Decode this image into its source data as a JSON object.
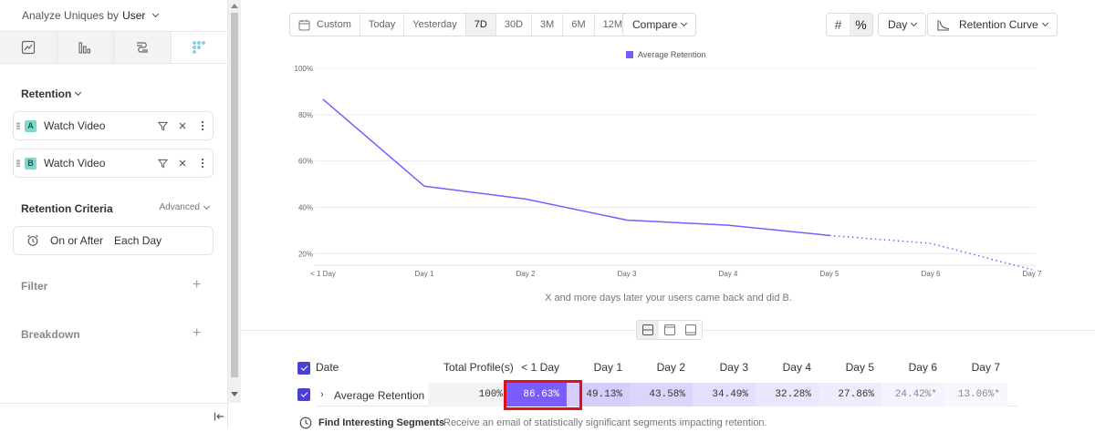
{
  "sidebar": {
    "analyze_prefix": "Analyze Uniques by",
    "analyze_value": "User",
    "retention_title": "Retention",
    "events": [
      {
        "badge": "A",
        "label": "Watch Video"
      },
      {
        "badge": "B",
        "label": "Watch Video"
      }
    ],
    "criteria_title": "Retention Criteria",
    "criteria_mode": "Advanced",
    "criteria_condition": "On or After",
    "criteria_interval": "Each Day",
    "filter_title": "Filter",
    "breakdown_title": "Breakdown"
  },
  "toolbar": {
    "date_options": [
      "Custom",
      "Today",
      "Yesterday",
      "7D",
      "30D",
      "3M",
      "6M",
      "12M"
    ],
    "active_date": "7D",
    "compare_label": "Compare",
    "display_hash": "#",
    "display_percent": "%",
    "granularity": "Day",
    "chart_type": "Retention Curve"
  },
  "chart_data": {
    "type": "line",
    "series": [
      {
        "name": "Average Retention",
        "color": "#7b5cff",
        "x": [
          "< 1 Day",
          "Day 1",
          "Day 2",
          "Day 3",
          "Day 4",
          "Day 5",
          "Day 6",
          "Day 7"
        ],
        "values": [
          86.63,
          49.13,
          43.58,
          34.49,
          32.28,
          27.86,
          24.42,
          13.06
        ],
        "incomplete_from_index": 5
      }
    ],
    "y_ticks": [
      "100%",
      "80%",
      "60%",
      "40%",
      "20%"
    ],
    "ylim": [
      15,
      100
    ],
    "grid": true,
    "legend_position": "top-center",
    "caption": "X and more days later your users came back and did B."
  },
  "table": {
    "headers": {
      "date": "Date",
      "total": "Total Profile(s)",
      "days": [
        "< 1 Day",
        "Day 1",
        "Day 2",
        "Day 3",
        "Day 4",
        "Day 5",
        "Day 6",
        "Day 7"
      ]
    },
    "row": {
      "label": "Average Retention",
      "total": "100%",
      "values": [
        "86.63%",
        "49.13%",
        "43.58%",
        "34.49%",
        "32.28%",
        "27.86%",
        "24.42%*",
        "13.06%*"
      ]
    }
  },
  "footer": {
    "title": "Find Interesting Segments",
    "text": "Receive an email of statistically significant segments impacting retention."
  }
}
